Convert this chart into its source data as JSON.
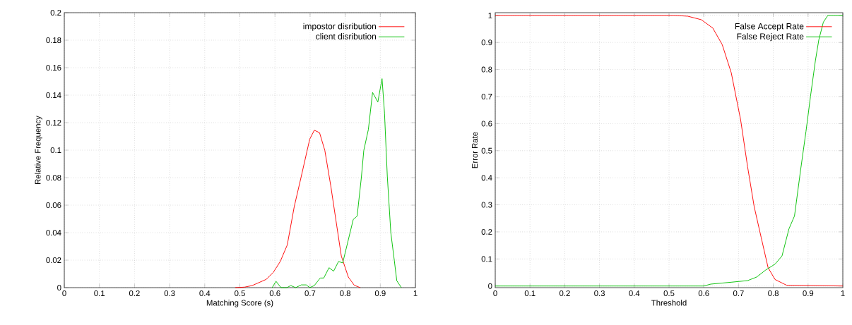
{
  "chart_data": [
    {
      "type": "line",
      "xlabel": "Matching Score (s)",
      "ylabel": "Relative Frequency",
      "xlim": [
        0,
        1
      ],
      "ylim": [
        0,
        0.2
      ],
      "xticks": [
        0,
        0.1,
        0.2,
        0.3,
        0.4,
        0.5,
        0.6,
        0.7,
        0.8,
        0.9,
        1
      ],
      "yticks": [
        0,
        0.02,
        0.04,
        0.06,
        0.08,
        0.1,
        0.12,
        0.14,
        0.16,
        0.18,
        0.2
      ],
      "grid": true,
      "legend": "top right",
      "marker": "none",
      "line_style": "solid",
      "series": [
        {
          "name": "impostor disribution",
          "color": "#ff0000",
          "x": [
            0.487,
            0.514,
            0.535,
            0.575,
            0.595,
            0.615,
            0.635,
            0.655,
            0.675,
            0.699,
            0.712,
            0.727,
            0.742,
            0.759,
            0.776,
            0.789,
            0.809,
            0.826,
            0.843
          ],
          "values": [
            0,
            0.0004,
            0.0015,
            0.006,
            0.011,
            0.019,
            0.031,
            0.059,
            0.081,
            0.108,
            0.1145,
            0.1127,
            0.0998,
            0.074,
            0.045,
            0.023,
            0.0077,
            0.0017,
            0
          ]
        },
        {
          "name": "client disribution",
          "color": "#00c000",
          "x": [
            0.592,
            0.603,
            0.617,
            0.634,
            0.645,
            0.659,
            0.675,
            0.689,
            0.699,
            0.712,
            0.729,
            0.739,
            0.754,
            0.767,
            0.781,
            0.793,
            0.823,
            0.834,
            0.846,
            0.853,
            0.866,
            0.878,
            0.893,
            0.905,
            0.912,
            0.917,
            0.92,
            0.93,
            0.94,
            0.947,
            0.96
          ],
          "values": [
            0,
            0.0046,
            0,
            0,
            0.0015,
            0,
            0.002,
            0.002,
            0,
            0.0015,
            0.007,
            0.007,
            0.0145,
            0.012,
            0.019,
            0.018,
            0.0496,
            0.052,
            0.08,
            0.0998,
            0.115,
            0.142,
            0.135,
            0.152,
            0.127,
            0.098,
            0.081,
            0.04,
            0.0196,
            0.005,
            0
          ]
        }
      ]
    },
    {
      "type": "line",
      "xlabel": "Threshold",
      "ylabel": "Error Rate",
      "xlim": [
        0,
        1
      ],
      "ylim": [
        -0.006,
        1.01
      ],
      "xticks": [
        0,
        0.1,
        0.2,
        0.3,
        0.4,
        0.5,
        0.6,
        0.7,
        0.8,
        0.9,
        1
      ],
      "yticks": [
        0,
        0.1,
        0.2,
        0.3,
        0.4,
        0.5,
        0.6,
        0.7,
        0.8,
        0.9,
        1
      ],
      "grid": true,
      "legend": "top right",
      "marker": "none",
      "line_style": "solid",
      "series": [
        {
          "name": "False Accept Rate",
          "color": "#ff0000",
          "x": [
            0,
            0.514,
            0.554,
            0.593,
            0.626,
            0.653,
            0.679,
            0.706,
            0.726,
            0.745,
            0.765,
            0.785,
            0.805,
            0.838,
            1
          ],
          "values": [
            1,
            1,
            0.997,
            0.984,
            0.953,
            0.892,
            0.788,
            0.614,
            0.441,
            0.293,
            0.18,
            0.068,
            0.024,
            0.003,
            0
          ]
        },
        {
          "name": "False Reject Rate",
          "color": "#00c000",
          "x": [
            0,
            0.6,
            0.62,
            0.679,
            0.726,
            0.752,
            0.778,
            0.805,
            0.825,
            0.845,
            0.861,
            0.878,
            0.894,
            0.907,
            0.921,
            0.931,
            0.944,
            0.957,
            1
          ],
          "values": [
            0,
            0,
            0.007,
            0.014,
            0.02,
            0.033,
            0.059,
            0.081,
            0.111,
            0.211,
            0.259,
            0.424,
            0.571,
            0.701,
            0.832,
            0.91,
            0.975,
            1,
            1
          ]
        }
      ]
    }
  ]
}
